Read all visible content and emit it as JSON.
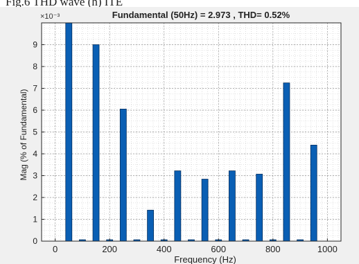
{
  "caption_fragment": "Fig.6 THD wave (h) ITE",
  "chart_data": {
    "type": "bar",
    "title": "Fundamental (50Hz) = 2.973 , THD= 0.52%",
    "xlabel": "Frequency (Hz)",
    "ylabel": "Mag (% of Fundamental)",
    "y_exponent_label": "×10⁻³",
    "y_scale": 0.001,
    "xlim": [
      -50,
      1050
    ],
    "ylim": [
      0,
      10
    ],
    "x_ticks": [
      0,
      200,
      400,
      600,
      800,
      1000
    ],
    "y_ticks": [
      0,
      1,
      2,
      3,
      4,
      5,
      6,
      7,
      8,
      9
    ],
    "grid": "on (major and minor)",
    "bar_color": "#0a5fb4",
    "x": [
      0,
      50,
      100,
      150,
      200,
      250,
      300,
      350,
      400,
      450,
      500,
      550,
      600,
      650,
      700,
      750,
      800,
      850,
      900,
      950
    ],
    "values": [
      0,
      10,
      0.03,
      9.0,
      0.03,
      6.05,
      0.03,
      1.42,
      0.03,
      3.22,
      0.03,
      2.84,
      0.03,
      3.22,
      0.03,
      3.07,
      0.03,
      7.25,
      0.03,
      4.4
    ]
  }
}
